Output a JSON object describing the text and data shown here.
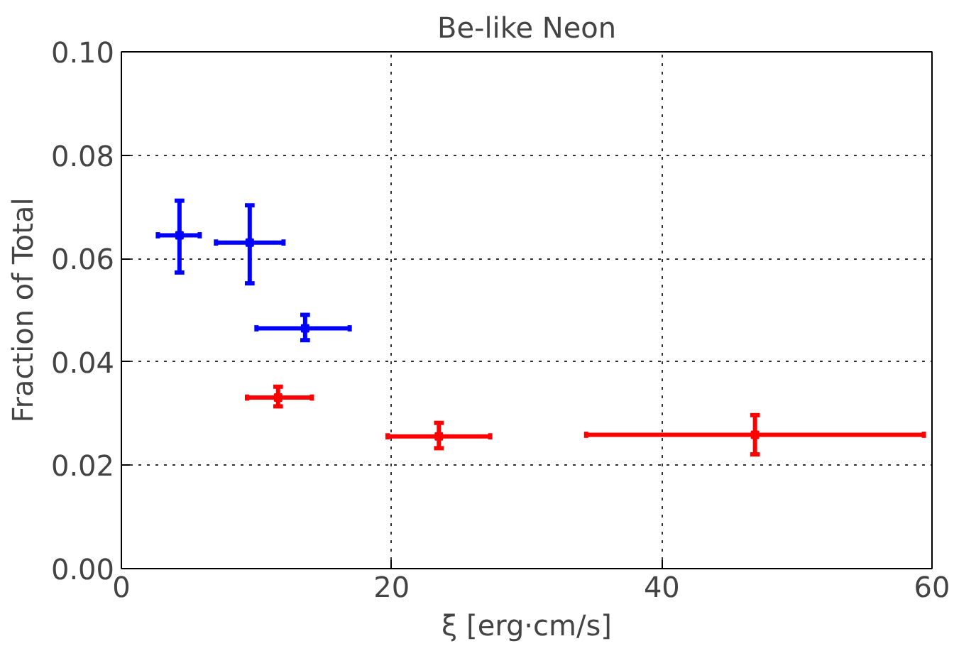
{
  "chart_data": {
    "type": "scatter",
    "title": "Be-like Neon",
    "xlabel": "ξ [erg·cm/s]",
    "ylabel": "Fraction of Total",
    "xlim": [
      0,
      60
    ],
    "ylim": [
      0,
      0.1
    ],
    "xticks": [
      0,
      20,
      40,
      60
    ],
    "yticks": [
      {
        "value": 0,
        "label": "0.00"
      },
      {
        "value": 0.02,
        "label": "0.02"
      },
      {
        "value": 0.04,
        "label": "0.04"
      },
      {
        "value": 0.06,
        "label": "0.06"
      },
      {
        "value": 0.08,
        "label": "0.08"
      },
      {
        "value": 0.1,
        "label": "0.10"
      }
    ],
    "grid": true,
    "line_style": "dotted",
    "series": [
      {
        "color": "#0000ff",
        "x": [
          4.3,
          9.5,
          13.6
        ],
        "values": [
          0.0645,
          0.0631,
          0.0465
        ],
        "errors": [
          [
            0.0573,
            0.0712
          ],
          [
            0.0552,
            0.0703
          ],
          [
            0.0442,
            0.0491
          ]
        ],
        "xerrors": [
          [
            2.7,
            5.8
          ],
          [
            7.0,
            12.0
          ],
          [
            10.0,
            16.9
          ]
        ]
      },
      {
        "color": "#ff0000",
        "x": [
          11.6,
          23.5,
          46.9
        ],
        "values": [
          0.0331,
          0.0256,
          0.0259
        ],
        "errors": [
          [
            0.0314,
            0.0352
          ],
          [
            0.0233,
            0.0282
          ],
          [
            0.0221,
            0.0297
          ]
        ],
        "xerrors": [
          [
            9.3,
            14.1
          ],
          [
            19.7,
            27.3
          ],
          [
            34.4,
            59.4
          ]
        ]
      }
    ]
  }
}
